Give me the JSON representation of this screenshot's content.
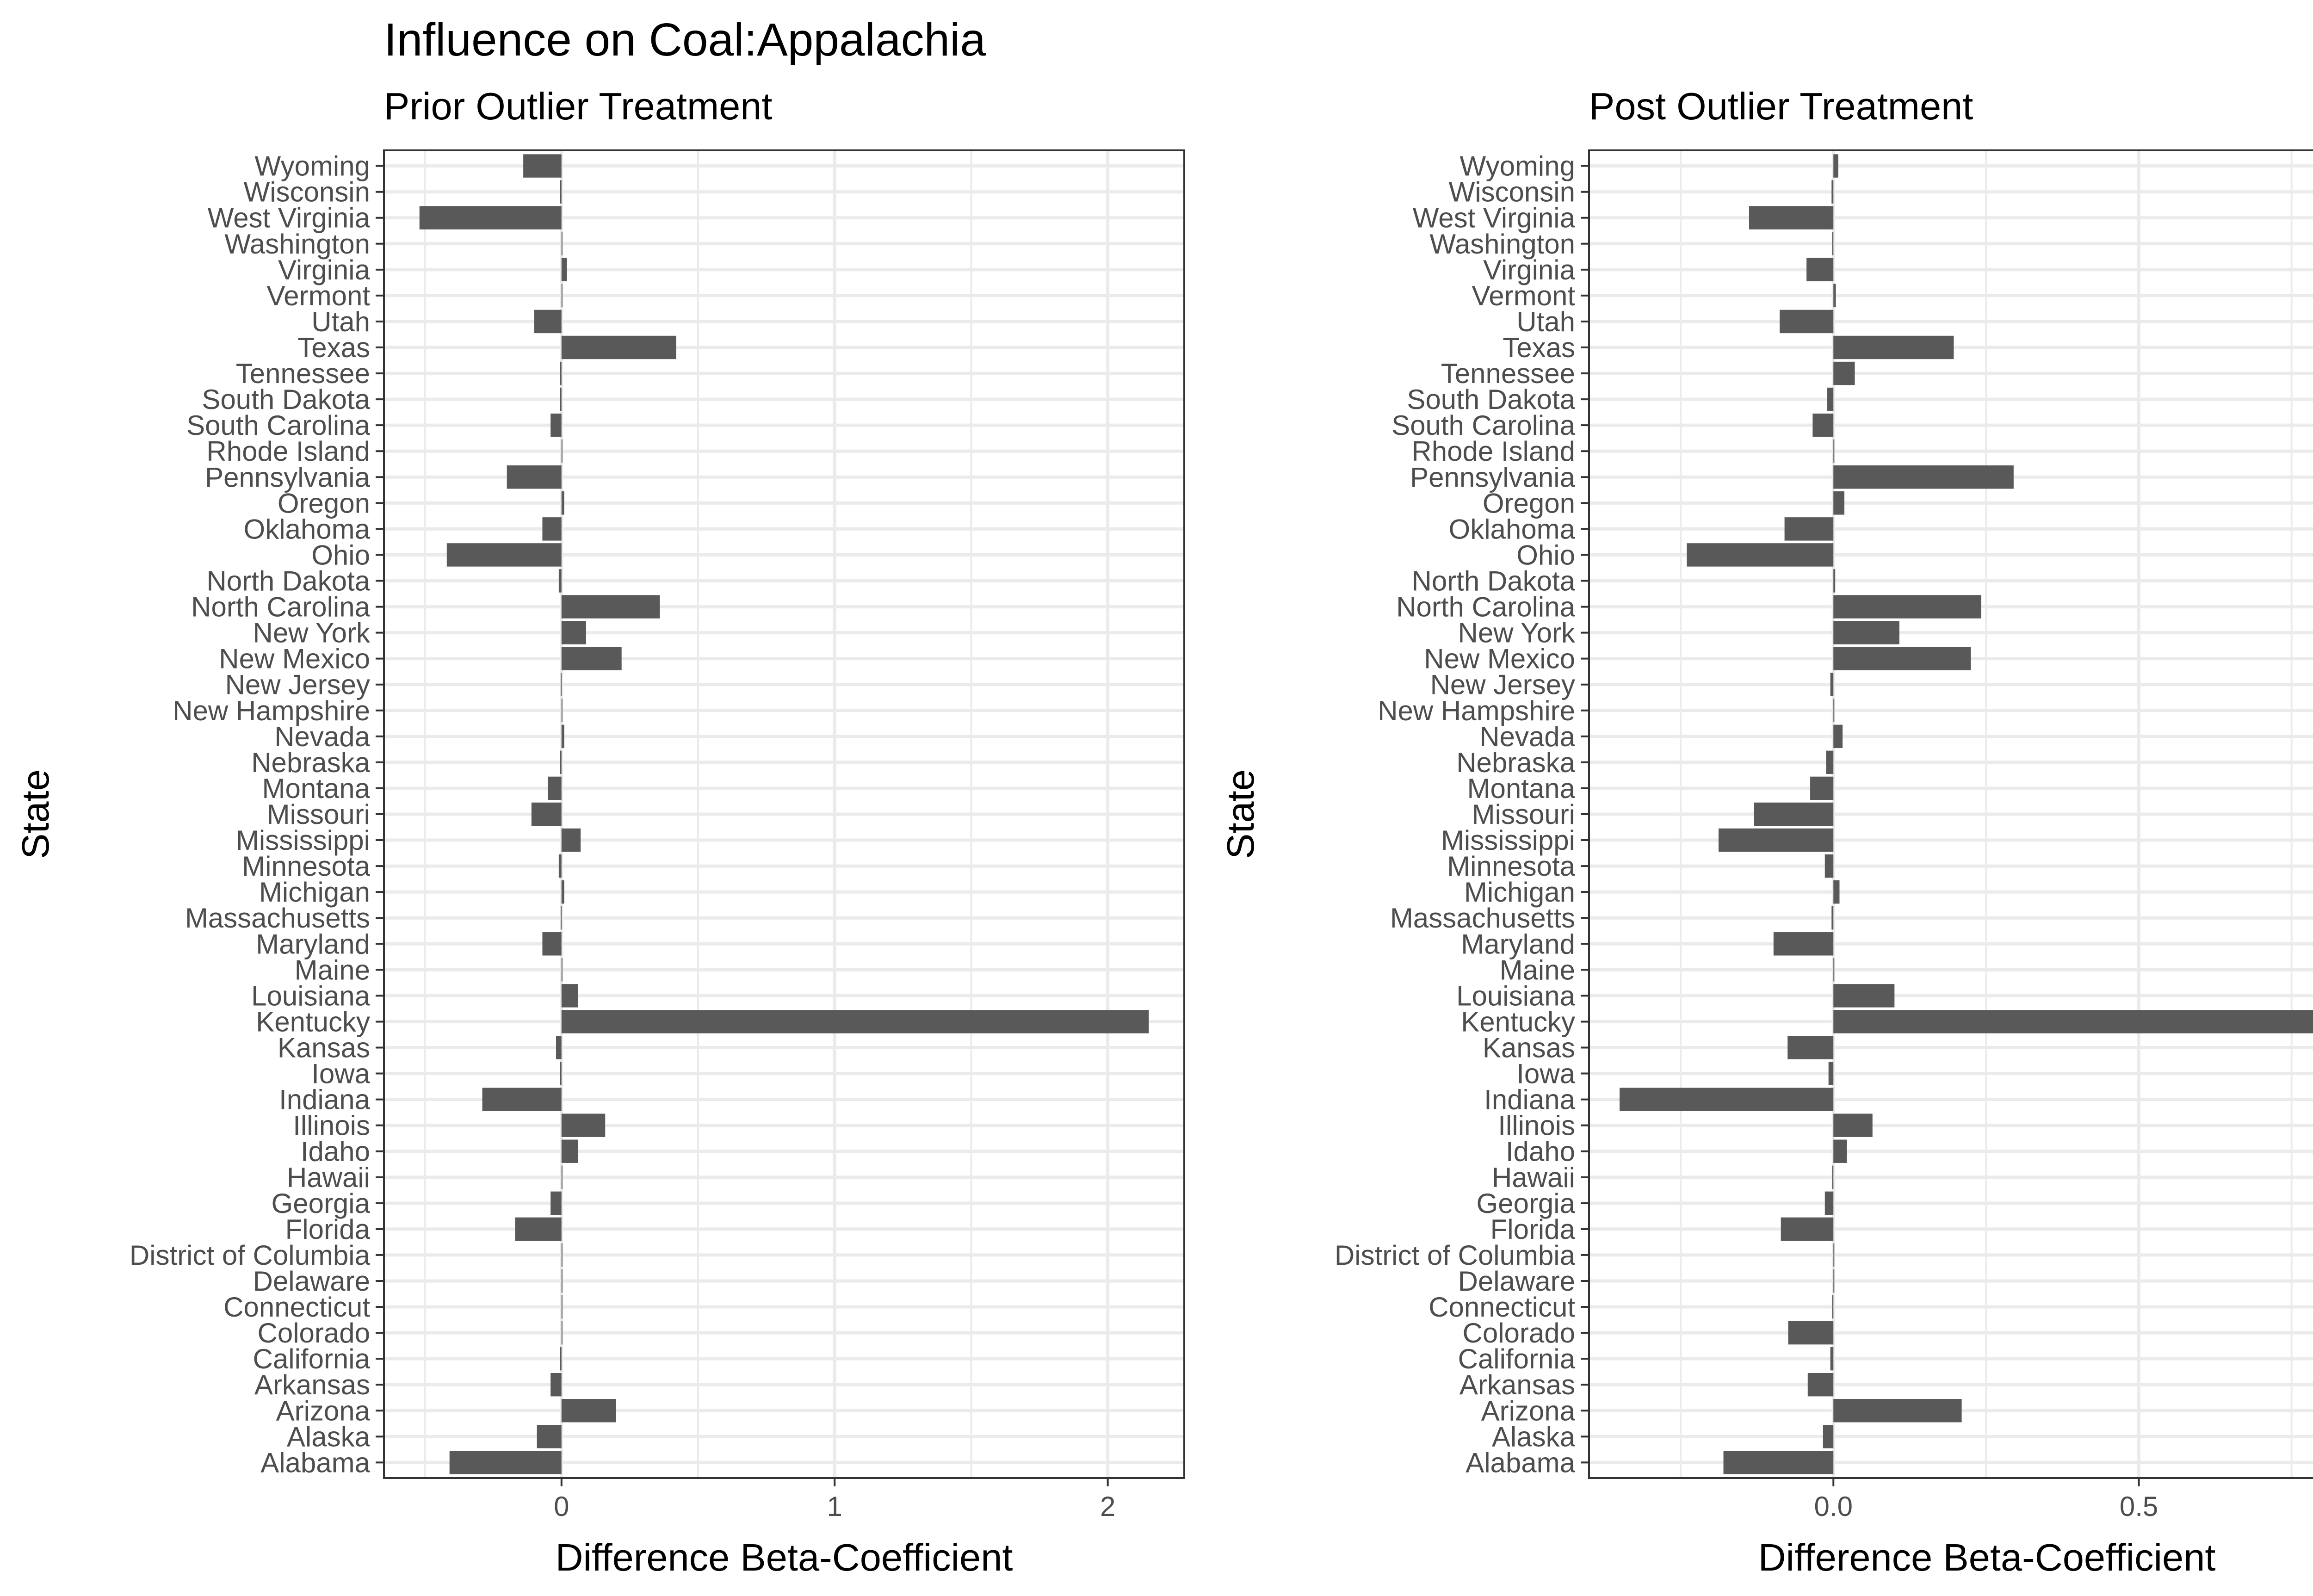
{
  "title": "Influence on Coal:Appalachia",
  "chart_data": [
    {
      "type": "bar",
      "orientation": "horizontal",
      "subtitle": "Prior Outlier Treatment",
      "xlabel": "Difference Beta-Coefficient",
      "ylabel": "State",
      "xlim": [
        -0.65,
        2.28
      ],
      "xticks": [
        0,
        1,
        2
      ],
      "xtick_labels": [
        "0",
        "1",
        "2"
      ],
      "grid": true,
      "categories": [
        "Alabama",
        "Alaska",
        "Arizona",
        "Arkansas",
        "California",
        "Colorado",
        "Connecticut",
        "Delaware",
        "District of Columbia",
        "Florida",
        "Georgia",
        "Hawaii",
        "Idaho",
        "Illinois",
        "Indiana",
        "Iowa",
        "Kansas",
        "Kentucky",
        "Louisiana",
        "Maine",
        "Maryland",
        "Massachusetts",
        "Michigan",
        "Minnesota",
        "Mississippi",
        "Missouri",
        "Montana",
        "Nebraska",
        "Nevada",
        "New Hampshire",
        "New Jersey",
        "New Mexico",
        "New York",
        "North Carolina",
        "North Dakota",
        "Ohio",
        "Oklahoma",
        "Oregon",
        "Pennsylvania",
        "Rhode Island",
        "South Carolina",
        "South Dakota",
        "Tennessee",
        "Texas",
        "Utah",
        "Vermont",
        "Virginia",
        "Washington",
        "West Virginia",
        "Wisconsin",
        "Wyoming"
      ],
      "values": [
        -0.41,
        -0.09,
        0.2,
        -0.04,
        -0.005,
        0.003,
        0.0,
        0.0,
        0.0,
        -0.17,
        -0.04,
        0.0,
        0.06,
        0.16,
        -0.29,
        -0.005,
        -0.02,
        2.15,
        0.06,
        0.0,
        -0.07,
        -0.003,
        0.01,
        -0.01,
        0.07,
        -0.11,
        -0.05,
        -0.005,
        0.01,
        0.0,
        -0.003,
        0.22,
        0.09,
        0.36,
        -0.01,
        -0.42,
        -0.07,
        0.01,
        -0.2,
        0.0,
        -0.04,
        -0.005,
        -0.005,
        0.42,
        -0.1,
        0.003,
        0.02,
        0.0,
        -0.52,
        -0.005,
        -0.14
      ]
    },
    {
      "type": "bar",
      "orientation": "horizontal",
      "subtitle": "Post Outlier Treatment",
      "xlabel": "Difference Beta-Coefficient",
      "ylabel": "State",
      "xlim": [
        -0.4,
        0.91
      ],
      "xticks": [
        0.0,
        0.5
      ],
      "xtick_labels": [
        "0.0",
        "0.5"
      ],
      "grid": true,
      "categories": [
        "Alabama",
        "Alaska",
        "Arizona",
        "Arkansas",
        "California",
        "Colorado",
        "Connecticut",
        "Delaware",
        "District of Columbia",
        "Florida",
        "Georgia",
        "Hawaii",
        "Idaho",
        "Illinois",
        "Indiana",
        "Iowa",
        "Kansas",
        "Kentucky",
        "Louisiana",
        "Maine",
        "Maryland",
        "Massachusetts",
        "Michigan",
        "Minnesota",
        "Mississippi",
        "Missouri",
        "Montana",
        "Nebraska",
        "Nevada",
        "New Hampshire",
        "New Jersey",
        "New Mexico",
        "New York",
        "North Carolina",
        "North Dakota",
        "Ohio",
        "Oklahoma",
        "Oregon",
        "Pennsylvania",
        "Rhode Island",
        "South Carolina",
        "South Dakota",
        "Tennessee",
        "Texas",
        "Utah",
        "Vermont",
        "Virginia",
        "Washington",
        "West Virginia",
        "Wisconsin",
        "Wyoming"
      ],
      "values": [
        -0.18,
        -0.017,
        0.21,
        -0.042,
        -0.005,
        -0.074,
        -0.002,
        0.0,
        0.0,
        -0.086,
        -0.014,
        -0.002,
        0.022,
        0.064,
        -0.35,
        -0.008,
        -0.075,
        0.85,
        0.1,
        0.0,
        -0.098,
        -0.003,
        0.01,
        -0.014,
        -0.188,
        -0.13,
        -0.038,
        -0.012,
        0.015,
        0.0,
        -0.005,
        0.225,
        0.108,
        0.242,
        0.003,
        -0.24,
        -0.08,
        0.018,
        0.295,
        0.0,
        -0.034,
        -0.01,
        0.035,
        0.197,
        -0.088,
        0.004,
        -0.044,
        -0.002,
        -0.138,
        -0.003,
        0.008
      ]
    }
  ]
}
